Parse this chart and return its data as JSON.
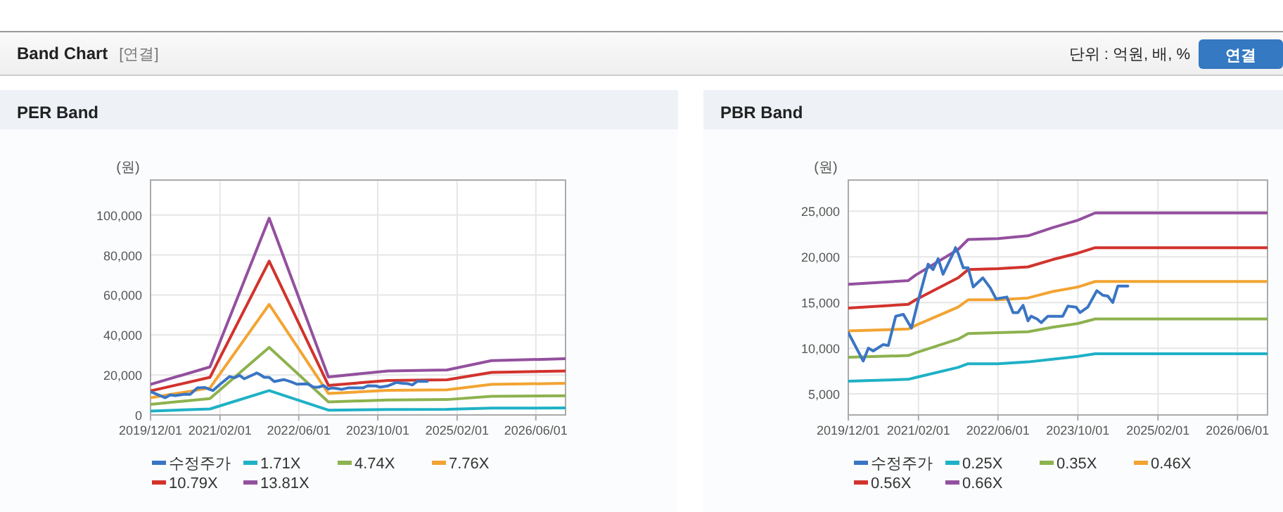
{
  "chart_data": [
    {
      "type": "other",
      "title": "Band Chart",
      "annotations": [
        "[연결]",
        "단위 : 억원, 배, %",
        "연결"
      ]
    },
    {
      "type": "line",
      "title": "PER Band",
      "ylabel": "(원)",
      "grid": true,
      "legend": "bottom",
      "marker": "none",
      "line_style": "solid",
      "xlim": [
        "2019-12-01",
        "2026-12-01"
      ],
      "xticks": [
        {
          "value": "2019-12-01",
          "label": "2019/12/01"
        },
        {
          "value": "2021-02-01",
          "label": "2021/02/01"
        },
        {
          "value": "2022-06-01",
          "label": "2022/06/01"
        },
        {
          "value": "2023-10-01",
          "label": "2023/10/01"
        },
        {
          "value": "2025-02-01",
          "label": "2025/02/01"
        },
        {
          "value": "2026-06-01",
          "label": "2026/06/01"
        }
      ],
      "ylim": [
        0,
        117500
      ],
      "yticks": [
        {
          "value": 0,
          "label": "0"
        },
        {
          "value": 20000,
          "label": "20,000"
        },
        {
          "value": 40000,
          "label": "40,000"
        },
        {
          "value": 60000,
          "label": "60,000"
        },
        {
          "value": 80000,
          "label": "80,000"
        },
        {
          "value": 100000,
          "label": "100,000"
        }
      ],
      "x": [
        "2019-12-01",
        "2020-12-01",
        "2021-12-01",
        "2022-12-01",
        "2023-12-01",
        "2024-12-01",
        "2025-09-01",
        "2026-12-01"
      ],
      "series": [
        {
          "name": "수정주가",
          "color": "#3a75c4",
          "x": [
            "2019-12-01",
            "2020-03-01",
            "2020-04-01",
            "2020-05-01",
            "2020-07-01",
            "2020-08-01",
            "2020-09-15",
            "2020-11-01",
            "2020-12-20",
            "2021-02-01",
            "2021-04-01",
            "2021-05-01",
            "2021-06-01",
            "2021-07-01",
            "2021-09-01",
            "2021-09-15",
            "2021-10-01",
            "2021-11-01",
            "2021-12-01",
            "2022-01-01",
            "2022-03-01",
            "2022-04-15",
            "2022-05-20",
            "2022-07-25",
            "2022-09-01",
            "2022-10-01",
            "2022-11-01",
            "2022-12-01",
            "2022-12-20",
            "2023-01-25",
            "2023-02-20",
            "2023-04-01",
            "2023-07-01",
            "2023-08-01",
            "2023-09-20",
            "2023-10-15",
            "2023-12-01",
            "2024-01-25",
            "2024-03-01",
            "2024-04-01",
            "2024-05-01",
            "2024-06-01",
            "2024-08-01"
          ],
          "values": [
            11700,
            8600,
            10000,
            9700,
            10400,
            10300,
            13500,
            13700,
            12200,
            15300,
            19200,
            18600,
            19800,
            18100,
            20400,
            21000,
            20400,
            18800,
            18800,
            16700,
            17700,
            16600,
            15400,
            15600,
            13900,
            13900,
            14700,
            13000,
            13500,
            13200,
            12800,
            13500,
            13500,
            14600,
            14500,
            13900,
            14500,
            16300,
            15800,
            15700,
            15000,
            16800,
            16800
          ]
        },
        {
          "name": "1.71X",
          "color": "#1fb1c6",
          "values": [
            1900,
            3000,
            12200,
            2400,
            2700,
            2800,
            3400,
            3500
          ]
        },
        {
          "name": "4.74X",
          "color": "#8db24e",
          "values": [
            5300,
            8200,
            33800,
            6500,
            7500,
            7700,
            9300,
            9600
          ]
        },
        {
          "name": "7.76X",
          "color": "#f2a432",
          "values": [
            8600,
            13500,
            55300,
            10700,
            12300,
            12600,
            15300,
            15800
          ]
        },
        {
          "name": "10.79X",
          "color": "#d1332c",
          "values": [
            12000,
            18800,
            76900,
            14800,
            17200,
            17600,
            21300,
            22000
          ]
        },
        {
          "name": "13.81X",
          "color": "#93509e",
          "values": [
            15300,
            24000,
            98400,
            19000,
            22000,
            22500,
            27200,
            28100
          ]
        }
      ]
    },
    {
      "type": "line",
      "title": "PBR Band",
      "ylabel": "(원)",
      "grid": true,
      "legend": "bottom",
      "marker": "none",
      "line_style": "solid",
      "xlim": [
        "2019-12-01",
        "2026-12-01"
      ],
      "xticks": [
        {
          "value": "2019-12-01",
          "label": "2019/12/01"
        },
        {
          "value": "2021-02-01",
          "label": "2021/02/01"
        },
        {
          "value": "2022-06-01",
          "label": "2022/06/01"
        },
        {
          "value": "2023-10-01",
          "label": "2023/10/01"
        },
        {
          "value": "2025-02-01",
          "label": "2025/02/01"
        },
        {
          "value": "2026-06-01",
          "label": "2026/06/01"
        }
      ],
      "ylim": [
        2700,
        28400
      ],
      "yticks": [
        {
          "value": 5000,
          "label": "5,000"
        },
        {
          "value": 10000,
          "label": "10,000"
        },
        {
          "value": 15000,
          "label": "15,000"
        },
        {
          "value": 20000,
          "label": "20,000"
        },
        {
          "value": 25000,
          "label": "25,000"
        }
      ],
      "x": [
        "2019-12-01",
        "2020-12-01",
        "2021-01-15",
        "2021-10-01",
        "2021-12-01",
        "2022-06-01",
        "2022-12-01",
        "2023-05-01",
        "2023-10-01",
        "2024-01-15",
        "2026-12-01"
      ],
      "series": [
        {
          "name": "수정주가",
          "color": "#3a75c4",
          "x": [
            "2019-12-01",
            "2020-03-01",
            "2020-04-01",
            "2020-05-01",
            "2020-07-01",
            "2020-08-01",
            "2020-09-15",
            "2020-11-01",
            "2020-12-20",
            "2021-02-01",
            "2021-04-01",
            "2021-05-01",
            "2021-06-01",
            "2021-07-01",
            "2021-09-01",
            "2021-09-15",
            "2021-10-01",
            "2021-11-01",
            "2021-12-01",
            "2022-01-01",
            "2022-03-01",
            "2022-04-15",
            "2022-05-20",
            "2022-07-25",
            "2022-09-01",
            "2022-10-01",
            "2022-11-01",
            "2022-12-01",
            "2022-12-20",
            "2023-01-25",
            "2023-02-20",
            "2023-04-01",
            "2023-07-01",
            "2023-08-01",
            "2023-09-20",
            "2023-10-15",
            "2023-12-01",
            "2024-01-25",
            "2024-03-01",
            "2024-04-01",
            "2024-05-01",
            "2024-06-01",
            "2024-08-01"
          ],
          "values": [
            11700,
            8600,
            10000,
            9700,
            10400,
            10300,
            13500,
            13700,
            12200,
            15300,
            19200,
            18600,
            19800,
            18100,
            20400,
            21000,
            20400,
            18800,
            18800,
            16700,
            17700,
            16600,
            15400,
            15600,
            13900,
            13900,
            14700,
            13000,
            13500,
            13200,
            12800,
            13500,
            13500,
            14600,
            14500,
            13900,
            14500,
            16300,
            15800,
            15700,
            15000,
            16800,
            16800
          ]
        },
        {
          "name": "0.25X",
          "color": "#1fb1c6",
          "values": [
            6400,
            6600,
            6800,
            7900,
            8300,
            8300,
            8500,
            8800,
            9100,
            9400,
            9400
          ]
        },
        {
          "name": "0.35X",
          "color": "#8db24e",
          "values": [
            9000,
            9200,
            9500,
            11000,
            11600,
            11700,
            11800,
            12300,
            12700,
            13200,
            13200
          ]
        },
        {
          "name": "0.46X",
          "color": "#f2a432",
          "values": [
            11900,
            12100,
            12500,
            14500,
            15300,
            15300,
            15500,
            16200,
            16700,
            17300,
            17300
          ]
        },
        {
          "name": "0.56X",
          "color": "#d1332c",
          "values": [
            14400,
            14800,
            15300,
            17700,
            18600,
            18700,
            18900,
            19700,
            20400,
            21000,
            21000
          ]
        },
        {
          "name": "0.66X",
          "color": "#93509e",
          "values": [
            17000,
            17400,
            18000,
            20800,
            21900,
            22000,
            22300,
            23200,
            24000,
            24800,
            24800
          ]
        }
      ]
    }
  ]
}
